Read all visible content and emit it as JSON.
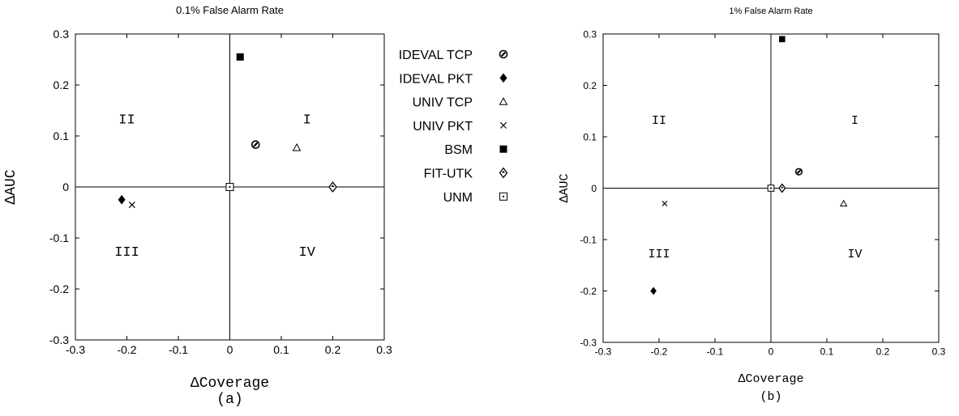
{
  "legend": [
    {
      "label": "IDEVAL TCP",
      "marker": "circle-shaded"
    },
    {
      "label": "IDEVAL PKT",
      "marker": "diamond-filled"
    },
    {
      "label": "UNIV TCP",
      "marker": "triangle-open"
    },
    {
      "label": "UNIV PKT",
      "marker": "x-cross"
    },
    {
      "label": "BSM",
      "marker": "square-filled"
    },
    {
      "label": "FIT-UTK",
      "marker": "diamond-half"
    },
    {
      "label": "UNM",
      "marker": "square-dot"
    }
  ],
  "chart_data": [
    {
      "type": "scatter",
      "title": "0.1% False Alarm Rate",
      "xlabel": "ΔCoverage",
      "ylabel": "ΔAUC",
      "caption": "(a)",
      "xlim": [
        -0.3,
        0.3
      ],
      "ylim": [
        -0.3,
        0.3
      ],
      "xticks": [
        "-0.3",
        "-0.2",
        "-0.1",
        "0",
        "0.1",
        "0.2",
        "0.3"
      ],
      "yticks": [
        "0.3",
        "0.2",
        "0.1",
        "0",
        "-0.1",
        "-0.2",
        "-0.3"
      ],
      "quadrants": {
        "I": "I",
        "II": "II",
        "III": "III",
        "IV": "IV"
      },
      "grid": false,
      "series": [
        {
          "name": "IDEVAL TCP",
          "x": 0.05,
          "y": 0.083
        },
        {
          "name": "IDEVAL PKT",
          "x": -0.21,
          "y": -0.025
        },
        {
          "name": "UNIV TCP",
          "x": 0.13,
          "y": 0.077
        },
        {
          "name": "UNIV PKT",
          "x": -0.19,
          "y": -0.035
        },
        {
          "name": "BSM",
          "x": 0.02,
          "y": 0.255
        },
        {
          "name": "FIT-UTK",
          "x": 0.2,
          "y": 0.0
        },
        {
          "name": "UNM",
          "x": 0.0,
          "y": 0.0
        }
      ]
    },
    {
      "type": "scatter",
      "title": "1% False Alarm Rate",
      "xlabel": "ΔCoverage",
      "ylabel": "ΔAUC",
      "caption": "(b)",
      "xlim": [
        -0.3,
        0.3
      ],
      "ylim": [
        -0.3,
        0.3
      ],
      "xticks": [
        "-0.3",
        "-0.2",
        "-0.1",
        "0",
        "0.1",
        "0.2",
        "0.3"
      ],
      "yticks": [
        "0.3",
        "0.2",
        "0.1",
        "0",
        "-0.1",
        "-0.2",
        "-0.3"
      ],
      "quadrants": {
        "I": "I",
        "II": "II",
        "III": "III",
        "IV": "IV"
      },
      "grid": false,
      "series": [
        {
          "name": "IDEVAL TCP",
          "x": 0.05,
          "y": 0.032
        },
        {
          "name": "IDEVAL PKT",
          "x": -0.21,
          "y": -0.2
        },
        {
          "name": "UNIV TCP",
          "x": 0.13,
          "y": -0.03
        },
        {
          "name": "UNIV PKT",
          "x": -0.19,
          "y": -0.03
        },
        {
          "name": "BSM",
          "x": 0.02,
          "y": 0.29
        },
        {
          "name": "FIT-UTK",
          "x": 0.02,
          "y": 0.0
        },
        {
          "name": "UNM",
          "x": 0.0,
          "y": 0.0
        }
      ]
    }
  ]
}
